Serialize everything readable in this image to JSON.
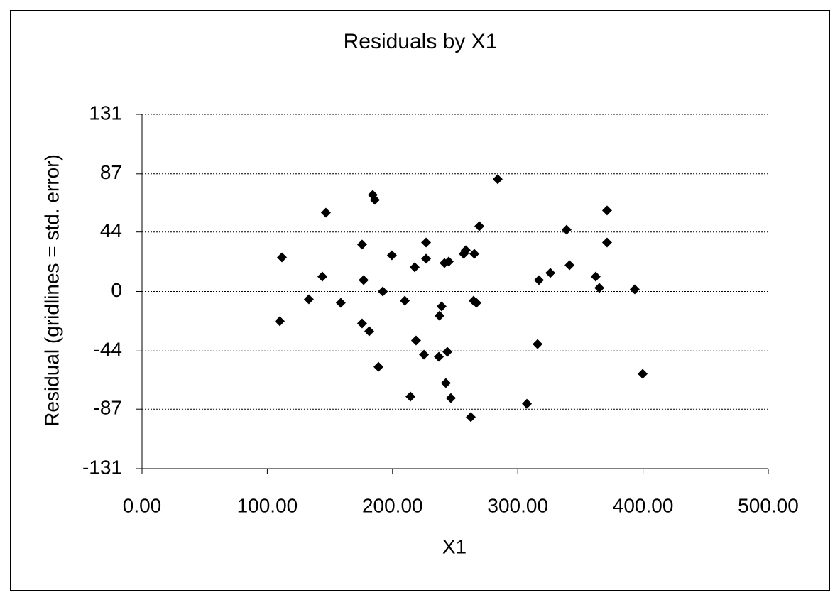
{
  "chart_data": {
    "type": "scatter",
    "title": "Residuals by X1",
    "x_label": "X1",
    "y_label": "Residual (gridlines = std. error)",
    "color": "#000000",
    "grid": true,
    "xlim": [
      0,
      500
    ],
    "xticks": [
      {
        "value": 0,
        "label": "0.00"
      },
      {
        "value": 100,
        "label": "100.00"
      },
      {
        "value": 200,
        "label": "200.00"
      },
      {
        "value": 300,
        "label": "300.00"
      },
      {
        "value": 400,
        "label": "400.00"
      },
      {
        "value": 500,
        "label": "500.00"
      }
    ],
    "ylim": [
      -131,
      131
    ],
    "yticks": [
      -131,
      -87,
      -44,
      0,
      44,
      87,
      131
    ],
    "x": [
      111.7,
      110,
      133.2,
      144,
      146.8,
      158.7,
      175.7,
      175.7,
      176.9,
      181.4,
      184.2,
      185.9,
      188.8,
      192.2,
      199.5,
      209.8,
      214.3,
      217.7,
      218.8,
      225.1,
      226.8,
      226.8,
      237,
      237.5,
      239.2,
      241.5,
      242.6,
      243.8,
      244.9,
      246.6,
      256.8,
      258.5,
      262.5,
      264.7,
      265.3,
      267,
      269.3,
      284,
      307.3,
      315.8,
      316.9,
      326,
      339,
      341.3,
      362.2,
      365.1,
      371.3,
      371.3,
      393.4,
      399.7
    ],
    "values": [
      25.2,
      -22,
      -5.8,
      11,
      58.3,
      -8.4,
      34.7,
      -23.6,
      8.4,
      -29.4,
      71.4,
      67.7,
      -55.7,
      0,
      26.8,
      -6.8,
      -77.7,
      17.9,
      -36.2,
      -46.7,
      36.2,
      24.2,
      -48.3,
      -17.9,
      -11,
      21,
      -67.7,
      -44.6,
      22.1,
      -78.8,
      27.8,
      30.5,
      -92.9,
      -6.8,
      27.8,
      -8.4,
      48.3,
      83,
      -83,
      -38.9,
      8.4,
      13.7,
      45.7,
      19.4,
      11,
      2.6,
      59.9,
      36.2,
      1.6,
      -60.9
    ]
  }
}
